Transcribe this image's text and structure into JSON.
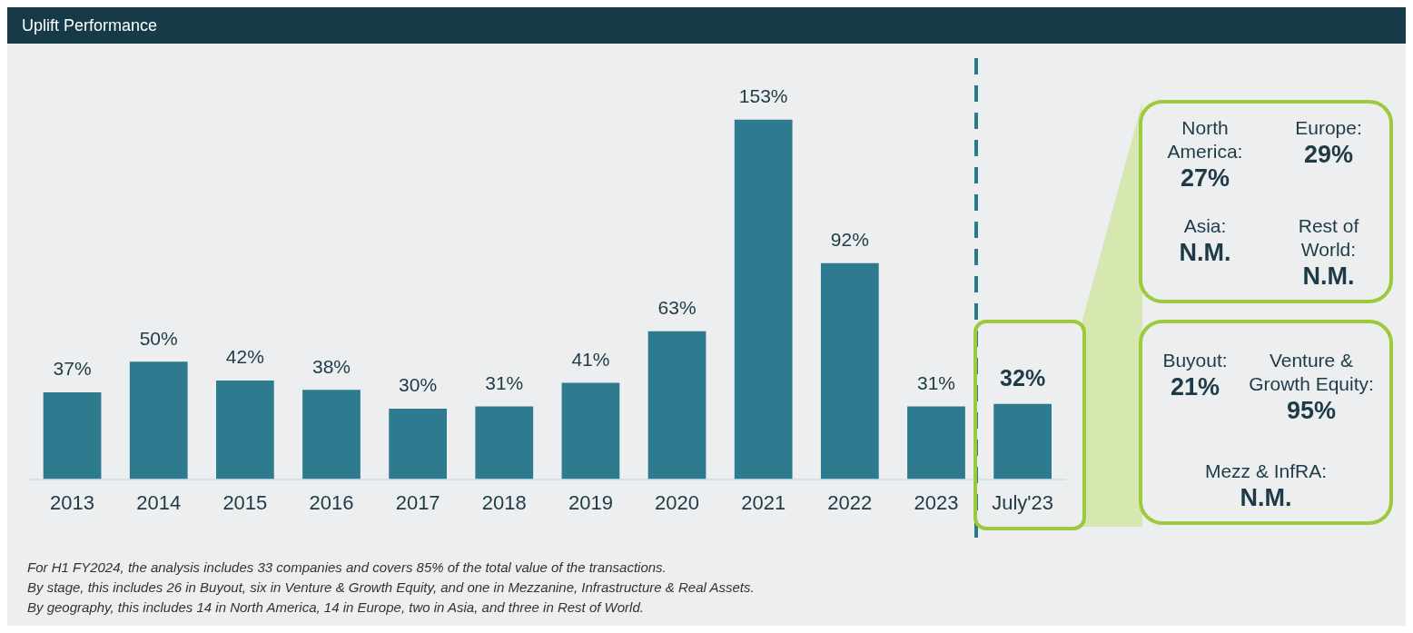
{
  "chart_data": {
    "type": "bar",
    "title": "Uplift Performance",
    "categories": [
      "2013",
      "2014",
      "2015",
      "2016",
      "2017",
      "2018",
      "2019",
      "2020",
      "2021",
      "2022",
      "2023",
      "July'23"
    ],
    "values": [
      37,
      50,
      42,
      38,
      30,
      31,
      41,
      63,
      153,
      92,
      31,
      32
    ],
    "value_labels": [
      "37%",
      "50%",
      "42%",
      "38%",
      "30%",
      "31%",
      "41%",
      "63%",
      "153%",
      "92%",
      "31%",
      "32%"
    ],
    "color": "#2e7a8f",
    "grid": false,
    "legend": false,
    "annotations": [
      "North America:",
      "27%",
      "Europe:",
      "29%",
      "Asia:",
      "N.M.",
      "Rest of World:",
      "N.M.",
      "Buyout:",
      "21%",
      "Venture & Growth Equity:",
      "95%",
      "Mezz & InfRA:",
      "N.M.",
      "For H1 FY2024, the analysis includes 33 companies and covers 85% of the total value of the transactions.",
      "By stage, this includes 26 in Buyout, six in Venture & Growth Equity, and one in Mezzanine, Infrastructure & Real Assets.",
      "By geography, this includes 14 in North America, 14 in Europe, two in Asia, and three in Rest of World."
    ]
  }
}
